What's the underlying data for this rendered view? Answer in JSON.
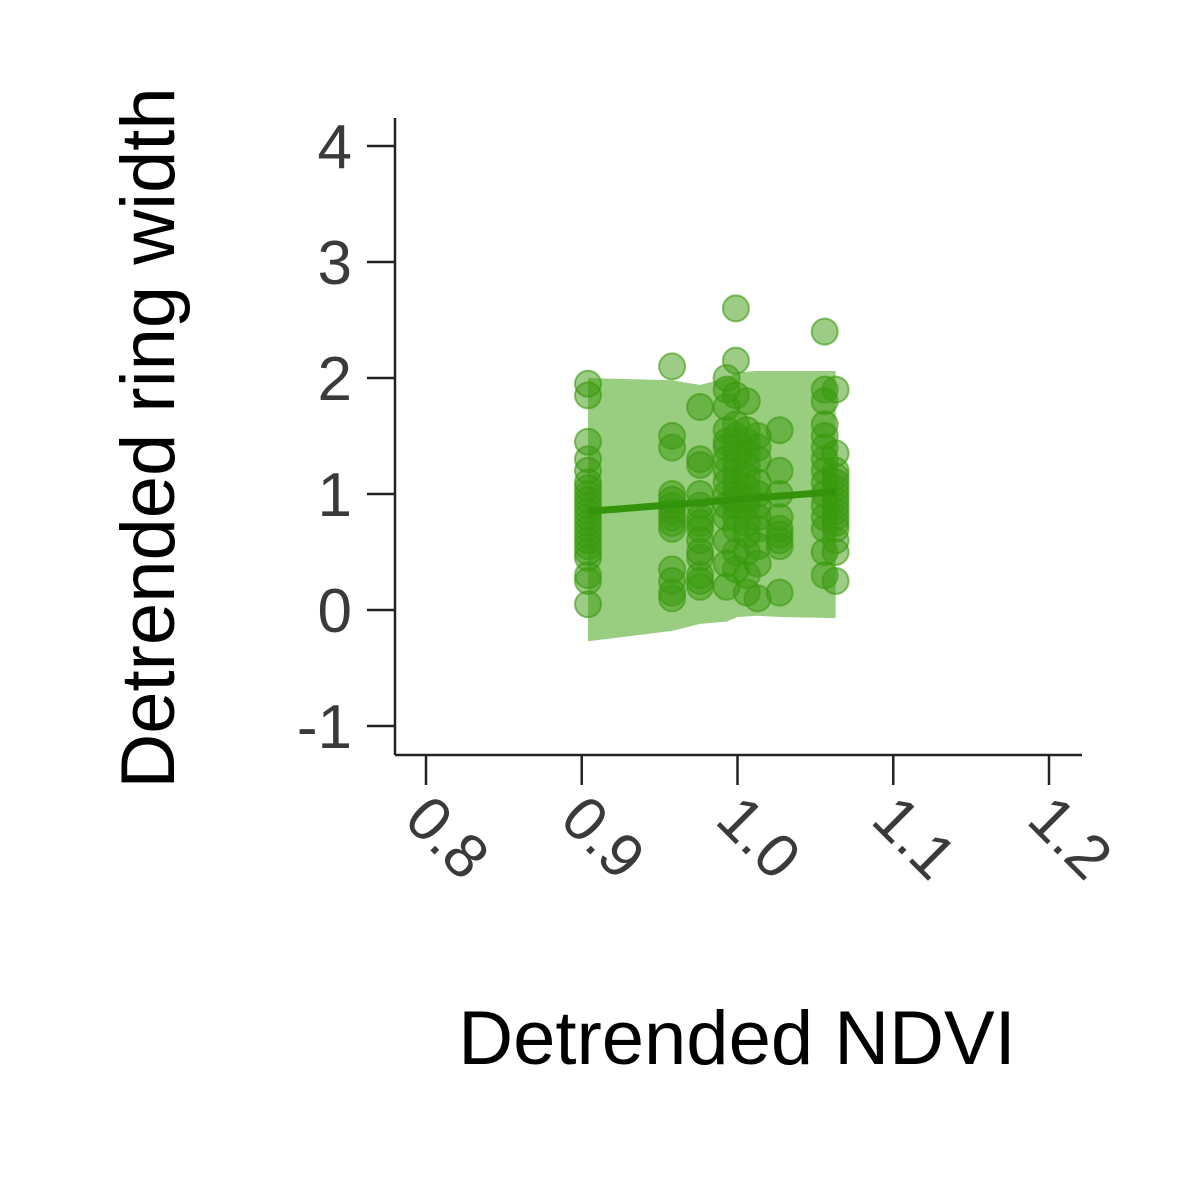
{
  "chart_data": {
    "type": "scatter",
    "title": "",
    "xlabel": "Detrended NDVI",
    "ylabel": "Detrended ring width",
    "xlim": [
      0.78,
      1.22
    ],
    "ylim": [
      -1.25,
      4.25
    ],
    "xticks": [
      0.8,
      0.9,
      1.0,
      1.1,
      1.2
    ],
    "xtick_labels": [
      "0.8",
      "0.9",
      "1.0",
      "1.1",
      "1.2"
    ],
    "yticks": [
      -1,
      0,
      1,
      2,
      3,
      4
    ],
    "ytick_labels": [
      "-1",
      "0",
      "1",
      "2",
      "3",
      "4"
    ],
    "grid": false,
    "legend": "none",
    "colors": {
      "points": "#3a9a0e",
      "band": "#7fc160",
      "line": "#33930a",
      "axis": "#222222"
    },
    "series": [
      {
        "x": [
          0.904,
          0.904,
          0.904,
          0.904,
          0.904,
          0.904,
          0.904,
          0.904,
          0.904,
          0.904,
          0.904,
          0.904,
          0.904,
          0.904,
          0.904,
          0.904,
          0.904,
          0.904,
          0.904,
          0.904,
          0.904,
          0.904,
          0.958,
          0.958,
          0.958,
          0.958,
          0.958,
          0.958,
          0.958,
          0.958,
          0.958,
          0.958,
          0.958,
          0.958,
          0.958,
          0.958,
          0.976,
          0.976,
          0.976,
          0.976,
          0.976,
          0.976,
          0.976,
          0.976,
          0.976,
          0.976,
          0.976,
          0.976,
          0.976,
          0.976,
          0.993,
          0.993,
          0.993,
          0.993,
          0.993,
          0.993,
          0.993,
          0.993,
          0.993,
          0.993,
          0.993,
          0.993,
          0.993,
          0.993,
          0.993,
          0.999,
          0.999,
          0.999,
          0.999,
          0.999,
          0.999,
          0.999,
          0.999,
          0.999,
          0.999,
          0.999,
          0.999,
          0.999,
          0.999,
          0.999,
          0.999,
          1.006,
          1.006,
          1.006,
          1.006,
          1.006,
          1.006,
          1.006,
          1.006,
          1.006,
          1.006,
          1.006,
          1.006,
          1.006,
          1.006,
          1.013,
          1.013,
          1.013,
          1.013,
          1.013,
          1.013,
          1.013,
          1.013,
          1.013,
          1.013,
          1.013,
          1.027,
          1.027,
          1.027,
          1.027,
          1.027,
          1.027,
          1.027,
          1.027,
          1.027,
          1.056,
          1.056,
          1.056,
          1.056,
          1.056,
          1.056,
          1.056,
          1.056,
          1.056,
          1.056,
          1.056,
          1.056,
          1.056,
          1.056,
          1.056,
          1.063,
          1.063,
          1.063,
          1.063,
          1.063,
          1.063,
          1.063,
          1.063,
          1.063,
          1.063,
          1.063,
          1.063,
          1.063,
          1.063,
          1.063,
          1.063
        ],
        "y": [
          1.95,
          1.85,
          1.45,
          1.3,
          1.1,
          1.05,
          1.0,
          0.95,
          0.9,
          0.85,
          0.8,
          0.75,
          0.7,
          0.65,
          0.6,
          0.55,
          0.5,
          0.45,
          0.3,
          0.25,
          0.05,
          1.2,
          2.1,
          1.5,
          1.4,
          1.0,
          0.95,
          0.9,
          0.85,
          0.8,
          0.75,
          0.7,
          0.35,
          0.25,
          0.15,
          0.1,
          1.75,
          1.3,
          1.25,
          1.0,
          0.9,
          0.8,
          0.75,
          0.7,
          0.6,
          0.5,
          0.45,
          0.3,
          0.25,
          0.2,
          2.0,
          1.9,
          1.75,
          1.55,
          1.45,
          1.4,
          1.3,
          1.2,
          1.1,
          1.0,
          0.9,
          0.8,
          0.6,
          0.4,
          0.2,
          2.6,
          2.15,
          1.85,
          1.6,
          1.5,
          1.4,
          1.3,
          1.2,
          1.1,
          1.0,
          0.95,
          0.9,
          0.8,
          0.7,
          0.5,
          0.35,
          1.8,
          1.55,
          1.45,
          1.35,
          1.25,
          1.15,
          1.05,
          0.95,
          0.9,
          0.75,
          0.65,
          0.5,
          0.3,
          0.15,
          1.5,
          1.4,
          1.3,
          1.1,
          1.0,
          0.9,
          0.8,
          0.7,
          0.55,
          0.4,
          0.1,
          1.55,
          1.2,
          1.0,
          0.8,
          0.7,
          0.65,
          0.6,
          0.55,
          0.15,
          2.4,
          1.9,
          1.8,
          1.6,
          1.5,
          1.4,
          1.3,
          1.2,
          1.1,
          1.0,
          0.9,
          0.8,
          0.7,
          0.5,
          0.3,
          1.9,
          1.35,
          1.2,
          1.15,
          1.1,
          1.05,
          1.0,
          0.95,
          0.9,
          0.85,
          0.8,
          0.75,
          0.7,
          0.6,
          0.5,
          0.25
        ]
      }
    ],
    "fit_line": {
      "x": [
        0.904,
        1.063
      ],
      "y": [
        0.85,
        1.02
      ]
    },
    "confidence_band": {
      "x": [
        0.904,
        0.958,
        0.976,
        0.993,
        1.0,
        1.013,
        1.027,
        1.063
      ],
      "upper": [
        2.0,
        1.98,
        1.94,
        2.0,
        2.05,
        2.06,
        2.06,
        2.06
      ],
      "lower": [
        -0.27,
        -0.18,
        -0.12,
        -0.1,
        -0.06,
        -0.05,
        -0.06,
        -0.07
      ]
    }
  }
}
